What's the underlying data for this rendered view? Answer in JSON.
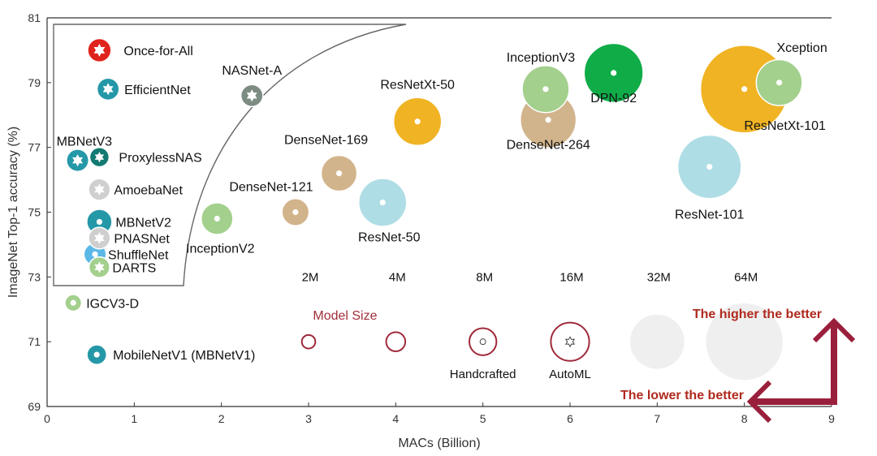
{
  "chart_data": {
    "type": "scatter",
    "xlabel": "MACs (Billion)",
    "ylabel": "ImageNet Top-1 accuracy (%)",
    "xlim": [
      0,
      9
    ],
    "ylim": [
      69,
      81
    ],
    "xticks": [
      "0",
      "1",
      "2",
      "3",
      "4",
      "5",
      "6",
      "7",
      "8",
      "9"
    ],
    "yticks": [
      "69",
      "71",
      "73",
      "75",
      "77",
      "79",
      "81"
    ],
    "points": [
      {
        "name": "DenseNet-264",
        "x": 5.75,
        "y": 77.85,
        "size_m": 34,
        "color": "#d2b48c",
        "marker": "dot"
      },
      {
        "name": "InceptionV3",
        "x": 5.72,
        "y": 78.8,
        "size_m": 24,
        "color": "#a3d08d",
        "marker": "dot"
      },
      {
        "name": "DPN-92",
        "x": 6.5,
        "y": 79.3,
        "size_m": 38,
        "color": "#10ac48",
        "marker": "dot"
      },
      {
        "name": "ResNetXt-101",
        "x": 8.0,
        "y": 78.8,
        "size_m": 84,
        "color": "#f0b323",
        "marker": "dot"
      },
      {
        "name": "Xception",
        "x": 8.4,
        "y": 79.0,
        "size_m": 23,
        "color": "#a3d08d",
        "marker": "dot"
      },
      {
        "name": "ResNet-101",
        "x": 7.6,
        "y": 76.4,
        "size_m": 44,
        "color": "#afdde5",
        "marker": "dot"
      },
      {
        "name": "ResNetXt-50",
        "x": 4.25,
        "y": 77.8,
        "size_m": 25,
        "color": "#f0b323",
        "marker": "dot"
      },
      {
        "name": "DenseNet-169",
        "x": 3.35,
        "y": 76.2,
        "size_m": 14,
        "color": "#d2b48c",
        "marker": "dot"
      },
      {
        "name": "ResNet-50",
        "x": 3.85,
        "y": 75.3,
        "size_m": 25,
        "color": "#afdde5",
        "marker": "dot"
      },
      {
        "name": "DenseNet-121",
        "x": 2.85,
        "y": 75.0,
        "size_m": 8,
        "color": "#d2b48c",
        "marker": "dot"
      },
      {
        "name": "InceptionV2",
        "x": 1.95,
        "y": 74.8,
        "size_m": 11,
        "color": "#a3d08d",
        "marker": "dot"
      },
      {
        "name": "NASNet-A",
        "x": 2.35,
        "y": 78.6,
        "size_m": 5.3,
        "color": "#7c8c82",
        "marker": "star"
      },
      {
        "name": "Once-for-All",
        "x": 0.6,
        "y": 80.0,
        "size_m": 6,
        "color": "#e0221c",
        "marker": "star"
      },
      {
        "name": "EfficientNet",
        "x": 0.7,
        "y": 78.8,
        "size_m": 5.3,
        "color": "#2598a8",
        "marker": "star"
      },
      {
        "name": "ProxylessNAS",
        "x": 0.6,
        "y": 76.7,
        "size_m": 4.1,
        "color": "#127a72",
        "marker": "star"
      },
      {
        "name": "MBNetV3",
        "x": 0.35,
        "y": 76.6,
        "size_m": 5.4,
        "color": "#2598a8",
        "marker": "star"
      },
      {
        "name": "AmoebaNet",
        "x": 0.6,
        "y": 75.7,
        "size_m": 5.1,
        "color": "#cfcfcf",
        "marker": "star"
      },
      {
        "name": "MBNetV2",
        "x": 0.6,
        "y": 74.7,
        "size_m": 6.9,
        "color": "#2598a8",
        "marker": "dot"
      },
      {
        "name": "PNASNet",
        "x": 0.6,
        "y": 74.2,
        "size_m": 5.1,
        "color": "#cfcfcf",
        "marker": "star"
      },
      {
        "name": "ShuffleNet",
        "x": 0.55,
        "y": 73.7,
        "size_m": 5.4,
        "color": "#5bb8e6",
        "marker": "dot"
      },
      {
        "name": "DARTS",
        "x": 0.6,
        "y": 73.3,
        "size_m": 4.7,
        "color": "#a3d08d",
        "marker": "star"
      },
      {
        "name": "IGCV3-D",
        "x": 0.3,
        "y": 72.2,
        "size_m": 3,
        "color": "#a3d08d",
        "marker": "dot"
      },
      {
        "name": "MobileNetV1 (MBNetV1)",
        "x": 0.57,
        "y": 70.6,
        "size_m": 4.2,
        "color": "#2598a8",
        "marker": "dot"
      }
    ],
    "size_legend": {
      "title": "Model Size",
      "entries": [
        {
          "label": "2M",
          "x": 3.0,
          "size_m": 2
        },
        {
          "label": "4M",
          "x": 4.0,
          "size_m": 4
        },
        {
          "label": "8M",
          "x": 5.0,
          "size_m": 8
        },
        {
          "label": "16M",
          "x": 6.0,
          "size_m": 16
        },
        {
          "label": "32M",
          "x": 7.0,
          "size_m": 32
        },
        {
          "label": "64M",
          "x": 8.0,
          "size_m": 64
        }
      ],
      "y": 71.0,
      "handcrafted_label": "Handcrafted",
      "automl_label": "AutoML"
    },
    "annotations": {
      "higher": "The higher the better",
      "lower": "The lower the better"
    }
  }
}
